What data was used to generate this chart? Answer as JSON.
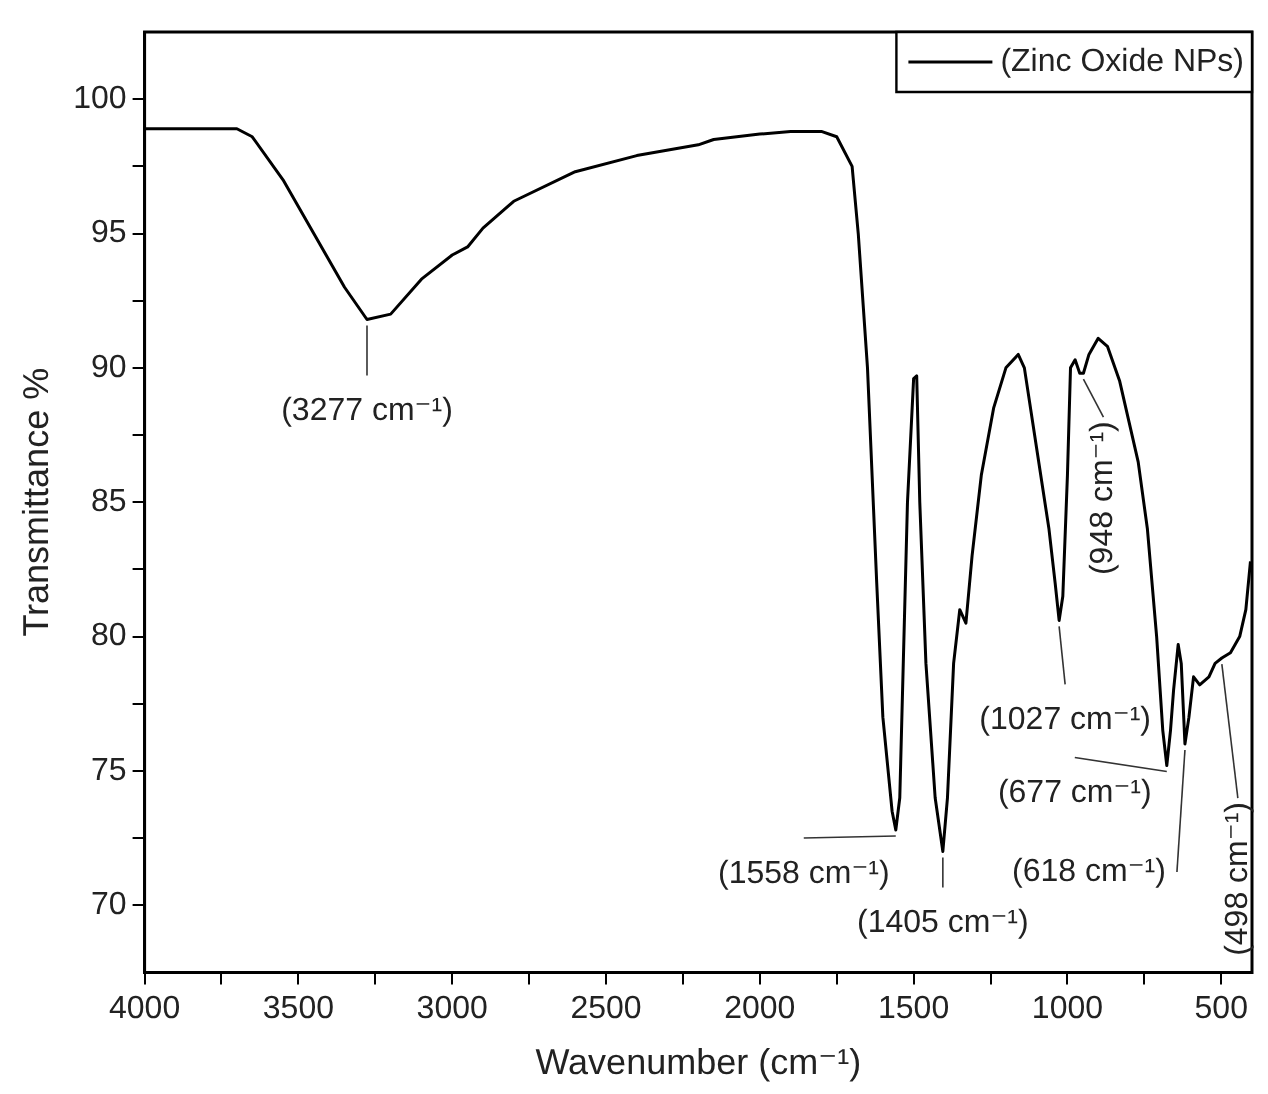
{
  "chart_data": {
    "type": "line",
    "xlabel": "Wavenumber (cm⁻¹)",
    "ylabel": "Transmittance %",
    "legend": "top right",
    "grid": false,
    "marker": "none",
    "line_style": "solid",
    "xlim": [
      4000,
      400
    ],
    "ylim": [
      67.5,
      102.5
    ],
    "xticks": [
      4000,
      {
        "value": 3750,
        "label": null
      },
      3500,
      {
        "value": 3250,
        "label": null
      },
      3000,
      {
        "value": 2750,
        "label": null
      },
      2500,
      {
        "value": 2250,
        "label": null
      },
      2000,
      {
        "value": 1750,
        "label": null
      },
      1500,
      {
        "value": 1250,
        "label": null
      },
      1000,
      {
        "value": 750,
        "label": null
      },
      500
    ],
    "yticks": [
      70,
      {
        "value": 72.5,
        "label": null
      },
      75,
      {
        "value": 77.5,
        "label": null
      },
      80,
      {
        "value": 82.5,
        "label": null
      },
      85,
      {
        "value": 87.5,
        "label": null
      },
      90,
      {
        "value": 92.5,
        "label": null
      },
      95,
      {
        "value": 97.5,
        "label": null
      },
      100
    ],
    "series": [
      {
        "name": "(Zinc Oxide NPs)",
        "color": "#000000",
        "x": [
          4000,
          3700,
          3650,
          3550,
          3450,
          3350,
          3277,
          3200,
          3100,
          3000,
          2950,
          2900,
          2800,
          2600,
          2400,
          2200,
          2150,
          2000,
          1900,
          1800,
          1750,
          1700,
          1680,
          1650,
          1620,
          1600,
          1570,
          1558,
          1545,
          1520,
          1500,
          1490,
          1480,
          1460,
          1430,
          1405,
          1390,
          1370,
          1350,
          1330,
          1310,
          1280,
          1240,
          1200,
          1160,
          1140,
          1100,
          1060,
          1040,
          1027,
          1015,
          1000,
          990,
          975,
          960,
          948,
          930,
          900,
          870,
          830,
          800,
          770,
          740,
          710,
          690,
          677,
          665,
          655,
          640,
          630,
          618,
          605,
          590,
          570,
          540,
          520,
          498,
          470,
          440,
          420,
          405
        ],
        "values": [
          98.9,
          98.9,
          98.6,
          97,
          95,
          93,
          91.8,
          92,
          93.3,
          94.2,
          94.5,
          95.2,
          96.2,
          97.3,
          97.9,
          98.3,
          98.5,
          98.7,
          98.8,
          98.8,
          98.6,
          97.5,
          95,
          90,
          82,
          77,
          73.5,
          72.8,
          74,
          85,
          89.6,
          89.7,
          85,
          79,
          74,
          72,
          74,
          79,
          81,
          80.5,
          83,
          86,
          88.5,
          90,
          90.5,
          90,
          87,
          84,
          82,
          80.6,
          81.5,
          86,
          90,
          90.3,
          89.8,
          89.8,
          90.5,
          91.1,
          90.8,
          89.5,
          88,
          86.5,
          84,
          80,
          76.5,
          75.2,
          76.5,
          78,
          79.7,
          79,
          76,
          77,
          78.5,
          78.2,
          78.5,
          79,
          79.2,
          79.4,
          80,
          81,
          82.8
        ]
      }
    ],
    "annotations": [
      {
        "text": "(3277 cm⁻¹)",
        "x": 3277,
        "y": 91.8
      },
      {
        "text": "(1558 cm⁻¹)",
        "x": 1558,
        "y": 72.8
      },
      {
        "text": "(1405 cm⁻¹)",
        "x": 1405,
        "y": 72
      },
      {
        "text": "(1027 cm⁻¹)",
        "x": 1027,
        "y": 80.6
      },
      {
        "text": "(948 cm⁻¹)",
        "x": 948,
        "y": 89.8
      },
      {
        "text": "(677 cm⁻¹)",
        "x": 677,
        "y": 75.2
      },
      {
        "text": "(618 cm⁻¹)",
        "x": 618,
        "y": 76
      },
      {
        "text": "(498 cm⁻¹)",
        "x": 498,
        "y": 79.2
      }
    ]
  }
}
